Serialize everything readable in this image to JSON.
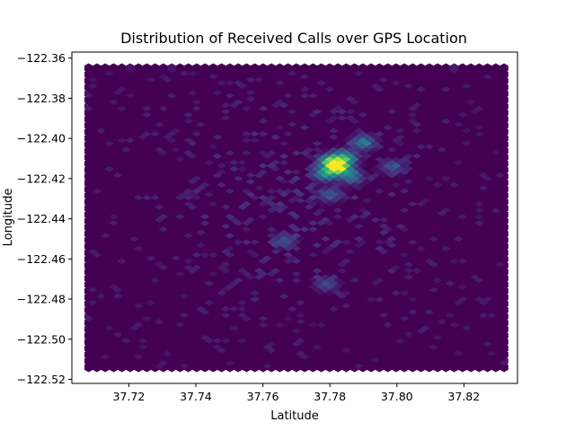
{
  "chart_data": {
    "type": "heatmap",
    "subtype": "hexbin",
    "title": "Distribution of Received Calls over GPS Location",
    "xlabel": "Latitude",
    "ylabel": "Longitude",
    "xlim": [
      37.703,
      37.836
    ],
    "ylim": [
      -122.522,
      -122.357
    ],
    "x_ticks": [
      37.72,
      37.74,
      37.76,
      37.78,
      37.8,
      37.82
    ],
    "x_tick_labels": [
      "37.72",
      "37.74",
      "37.76",
      "37.78",
      "37.80",
      "37.82"
    ],
    "y_ticks": [
      -122.36,
      -122.38,
      -122.4,
      -122.42,
      -122.44,
      -122.46,
      -122.48,
      -122.5,
      -122.52
    ],
    "y_tick_labels": [
      "−122.36",
      "−122.38",
      "−122.40",
      "−122.42",
      "−122.44",
      "−122.46",
      "−122.48",
      "−122.50",
      "−122.52"
    ],
    "colormap": "viridis",
    "hex_extent": {
      "x": [
        37.708,
        37.832
      ],
      "y": [
        -122.514,
        -122.365
      ]
    },
    "gridsize": 50,
    "colors": {
      "background": "#440154",
      "low": "#471164",
      "mid_low": "#3b528b",
      "mid": "#21918c",
      "mid_high": "#5ec962",
      "peak": "#fde725"
    },
    "density_hotspots": [
      {
        "x": 37.7825,
        "y": -122.4135,
        "intensity": 1.0
      },
      {
        "x": 37.7805,
        "y": -122.4105,
        "intensity": 0.62
      },
      {
        "x": 37.7845,
        "y": -122.4085,
        "intensity": 0.5
      },
      {
        "x": 37.7785,
        "y": -122.4165,
        "intensity": 0.45
      },
      {
        "x": 37.79,
        "y": -122.401,
        "intensity": 0.35
      },
      {
        "x": 37.7865,
        "y": -122.418,
        "intensity": 0.3
      },
      {
        "x": 37.78,
        "y": -122.427,
        "intensity": 0.22
      },
      {
        "x": 37.7665,
        "y": -122.45,
        "intensity": 0.2
      },
      {
        "x": 37.779,
        "y": -122.4715,
        "intensity": 0.18
      },
      {
        "x": 37.7985,
        "y": -122.413,
        "intensity": 0.2
      }
    ]
  }
}
